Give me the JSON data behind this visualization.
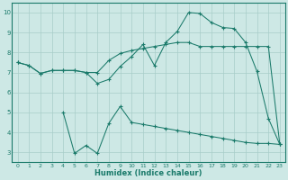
{
  "line1_x": [
    0,
    1,
    2,
    3,
    4,
    5,
    6,
    7,
    8,
    9,
    10,
    11,
    12,
    13,
    14,
    15,
    16,
    17,
    18,
    19,
    20,
    21,
    22,
    23
  ],
  "line1_y": [
    7.5,
    7.35,
    6.95,
    7.1,
    7.1,
    7.1,
    7.0,
    6.45,
    6.65,
    7.3,
    7.8,
    8.4,
    7.35,
    8.5,
    9.05,
    10.0,
    9.95,
    9.5,
    9.25,
    9.2,
    8.5,
    7.05,
    4.7,
    3.4
  ],
  "line2_x": [
    0,
    1,
    2,
    3,
    4,
    5,
    6,
    7,
    8,
    9,
    10,
    11,
    12,
    13,
    14,
    15,
    16,
    17,
    18,
    19,
    20,
    21,
    22,
    23
  ],
  "line2_y": [
    7.5,
    7.35,
    6.95,
    7.1,
    7.1,
    7.1,
    7.0,
    7.0,
    7.6,
    7.95,
    8.1,
    8.2,
    8.3,
    8.4,
    8.5,
    8.5,
    8.3,
    8.3,
    8.3,
    8.3,
    8.3,
    8.3,
    8.3,
    3.4
  ],
  "line3_x": [
    4,
    5,
    6,
    7,
    8,
    9,
    10,
    11,
    12,
    13,
    14,
    15,
    16,
    17,
    18,
    19,
    20,
    21,
    22,
    23
  ],
  "line3_y": [
    5.0,
    2.95,
    3.35,
    2.95,
    4.45,
    5.3,
    4.5,
    4.4,
    4.3,
    4.2,
    4.1,
    4.0,
    3.9,
    3.8,
    3.7,
    3.6,
    3.5,
    3.45,
    3.45,
    3.4
  ],
  "color": "#1a7a6a",
  "bg_color": "#cde8e5",
  "grid_color": "#a8cdc9",
  "xlabel": "Humidex (Indice chaleur)",
  "xlim": [
    -0.5,
    23.5
  ],
  "ylim": [
    2.5,
    10.5
  ],
  "xticks": [
    0,
    1,
    2,
    3,
    4,
    5,
    6,
    7,
    8,
    9,
    10,
    11,
    12,
    13,
    14,
    15,
    16,
    17,
    18,
    19,
    20,
    21,
    22,
    23
  ],
  "yticks": [
    3,
    4,
    5,
    6,
    7,
    8,
    9,
    10
  ]
}
